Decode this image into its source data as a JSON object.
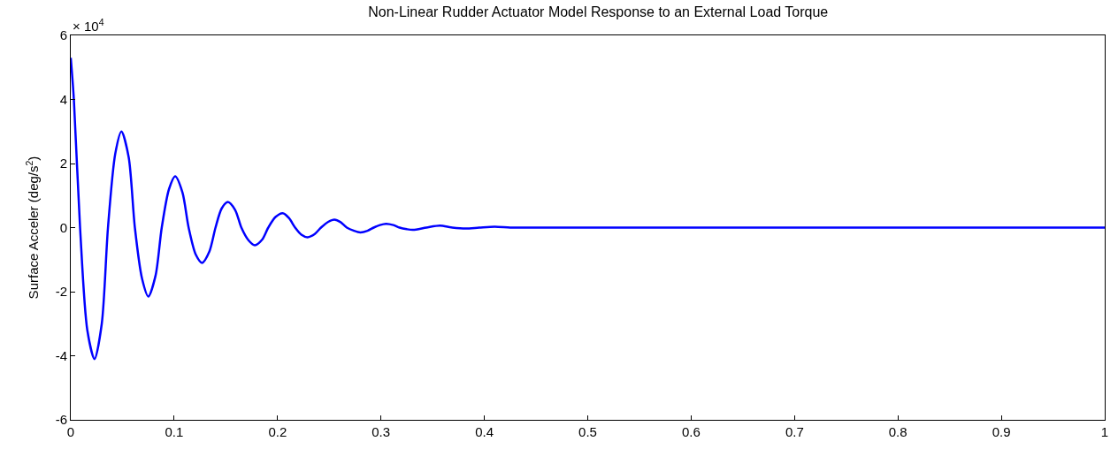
{
  "chart_data": {
    "type": "line",
    "title": "Non-Linear Rudder Actuator Model Response to an External Load Torque",
    "ylabel": "Surface Acceler (deg/s$^{2}$)",
    "annotations": [
      "× 10$^{4}$"
    ],
    "x": [
      0,
      0.003,
      0.009,
      0.016,
      0.023,
      0.03,
      0.036,
      0.043,
      0.049,
      0.056,
      0.062,
      0.069,
      0.075,
      0.082,
      0.088,
      0.095,
      0.101,
      0.108,
      0.114,
      0.121,
      0.127,
      0.134,
      0.14,
      0.146,
      0.152,
      0.159,
      0.165,
      0.172,
      0.178,
      0.185,
      0.191,
      0.198,
      0.205,
      0.211,
      0.217,
      0.223,
      0.229,
      0.236,
      0.242,
      0.249,
      0.255,
      0.261,
      0.267,
      0.274,
      0.28,
      0.287,
      0.293,
      0.299,
      0.305,
      0.312,
      0.318,
      0.325,
      0.331,
      0.344,
      0.357,
      0.369,
      0.382,
      0.395,
      0.41,
      0.425,
      0.44,
      1.0
    ],
    "series": [
      {
        "color": "#0000ff",
        "values": [
          5.3,
          4.0,
          0,
          -3.2,
          -4.1,
          -3.0,
          0,
          2.3,
          3.0,
          2.2,
          0,
          -1.6,
          -2.15,
          -1.5,
          0,
          1.2,
          1.6,
          1.1,
          0,
          -0.85,
          -1.1,
          -0.75,
          0,
          0.6,
          0.8,
          0.55,
          0,
          -0.4,
          -0.55,
          -0.38,
          0,
          0.33,
          0.45,
          0.3,
          0,
          -0.22,
          -0.3,
          -0.2,
          0,
          0.18,
          0.25,
          0.17,
          0,
          -0.1,
          -0.15,
          -0.1,
          0,
          0.08,
          0.12,
          0.08,
          0,
          -0.05,
          -0.07,
          0,
          0.06,
          0,
          -0.03,
          0,
          0.03,
          0,
          0,
          0
        ]
      }
    ],
    "xlim": [
      0,
      1
    ],
    "xticks": [
      0,
      0.1,
      0.2,
      0.3,
      0.4,
      0.5,
      0.6,
      0.7,
      0.8,
      0.9,
      1
    ],
    "ylim": [
      -6,
      6
    ],
    "yticks": [
      -6,
      -4,
      -2,
      0,
      2,
      4,
      6
    ],
    "marker": "none",
    "line_style": "solid"
  }
}
